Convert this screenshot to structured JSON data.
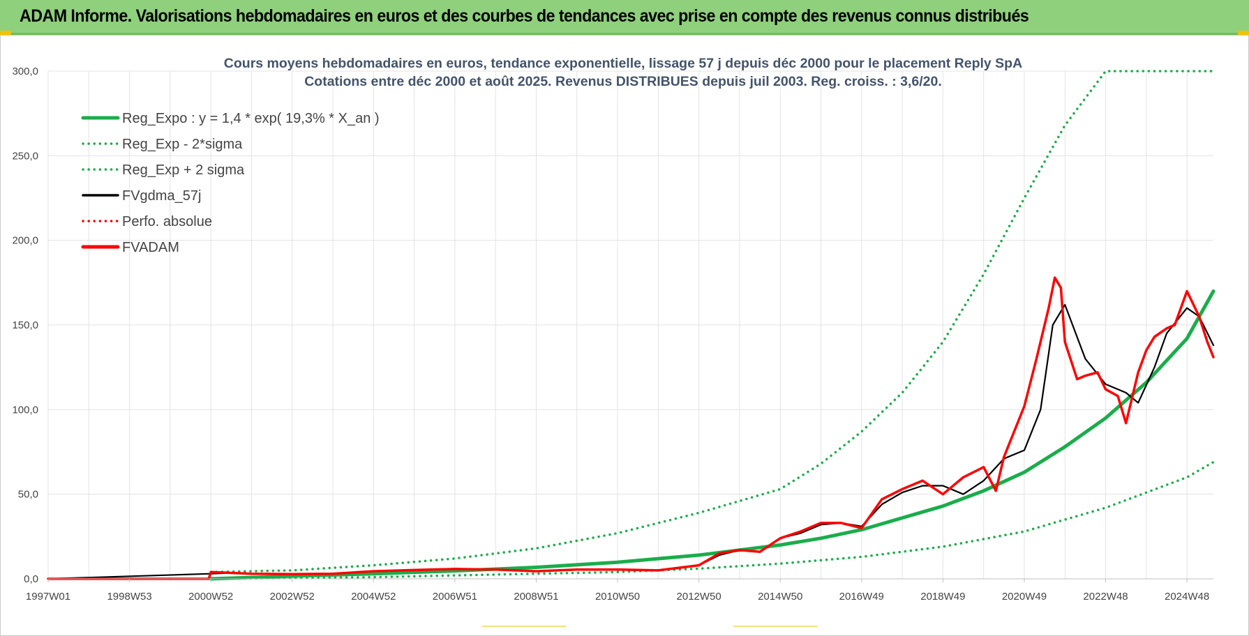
{
  "header": {
    "title": "ADAM Informe. Valorisations hebdomadaires en euros et des courbes de tendances avec prise en compte des revenus connus distribués"
  },
  "colors": {
    "header_bg": "#8fd07c",
    "reg_expo": "#1aad4b",
    "fvgdma": "#000000",
    "fvadam": "#ff0000",
    "title": "#44546a"
  },
  "chart_data": {
    "type": "line",
    "title": "Cours moyens hebdomadaires en euros, tendance exponentielle, lissage 57 j depuis déc 2000 pour le placement Reply SpA",
    "subtitle": "Cotations entre déc 2000 et août 2025. Revenus DISTRIBUES depuis juil 2003. Reg. croiss. : 3,6/20.",
    "xlabel": "",
    "ylabel": "",
    "ylim": [
      0,
      300
    ],
    "yticks": [
      "0,0",
      "50,0",
      "100,0",
      "150,0",
      "200,0",
      "250,0",
      "300,0"
    ],
    "xlim": [
      1997.0,
      2025.65
    ],
    "xticks": [
      {
        "label": "1997W01",
        "x": 1997.0
      },
      {
        "label": "1998W53",
        "x": 1999.0
      },
      {
        "label": "2000W52",
        "x": 2001.0
      },
      {
        "label": "2002W52",
        "x": 2003.0
      },
      {
        "label": "2004W52",
        "x": 2005.0
      },
      {
        "label": "2006W51",
        "x": 2007.0
      },
      {
        "label": "2008W51",
        "x": 2009.0
      },
      {
        "label": "2010W50",
        "x": 2011.0
      },
      {
        "label": "2012W50",
        "x": 2013.0
      },
      {
        "label": "2014W50",
        "x": 2015.0
      },
      {
        "label": "2016W49",
        "x": 2017.0
      },
      {
        "label": "2018W49",
        "x": 2019.0
      },
      {
        "label": "2020W49",
        "x": 2021.0
      },
      {
        "label": "2022W48",
        "x": 2023.0
      },
      {
        "label": "2024W48",
        "x": 2025.0
      }
    ],
    "grid": true,
    "legend_position": "top-left",
    "series": [
      {
        "name": "Reg_Expo : y = 1,4 * exp( 19,3% *  X_an )",
        "style": "solid",
        "color": "#1aad4b",
        "x": [
          2001,
          2003,
          2005,
          2007,
          2009,
          2011,
          2013,
          2015,
          2016,
          2017,
          2018,
          2019,
          2020,
          2021,
          2022,
          2023,
          2024,
          2025,
          2025.65
        ],
        "y": [
          0,
          1.6,
          3,
          4.7,
          6.8,
          9.8,
          14,
          20,
          24,
          29,
          36,
          43,
          52,
          63,
          78,
          95,
          116,
          142,
          170
        ]
      },
      {
        "name": "Reg_Exp - 2*sigma",
        "style": "dotted",
        "color": "#1aad4b",
        "x": [
          2001,
          2003,
          2005,
          2007,
          2009,
          2011,
          2013,
          2015,
          2017,
          2019,
          2021,
          2023,
          2025,
          2025.65
        ],
        "y": [
          0,
          0.5,
          1,
          2,
          3,
          4,
          6,
          9,
          13,
          19,
          28,
          42,
          60,
          69
        ]
      },
      {
        "name": "Reg_Exp + 2 sigma",
        "style": "dotted",
        "color": "#1aad4b",
        "x": [
          2001,
          2003,
          2005,
          2007,
          2009,
          2011,
          2013,
          2015,
          2016,
          2017,
          2018,
          2019,
          2020,
          2021,
          2022,
          2023,
          2024,
          2025,
          2025.65
        ],
        "y": [
          4,
          5,
          8,
          12,
          18,
          27,
          39,
          53,
          68,
          87,
          110,
          140,
          180,
          225,
          268,
          300,
          300,
          300,
          300
        ]
      },
      {
        "name": "FVgdma_57j",
        "style": "solid",
        "color": "#000000",
        "x": [
          1997,
          2001,
          2001.5,
          2002,
          2003,
          2004,
          2005,
          2006,
          2007,
          2008,
          2009,
          2010,
          2011,
          2012,
          2013,
          2013.5,
          2014,
          2014.5,
          2015,
          2015.5,
          2016,
          2016.5,
          2017,
          2017.5,
          2018,
          2018.5,
          2019,
          2019.5,
          2020,
          2020.5,
          2021,
          2021.4,
          2021.7,
          2022,
          2022.5,
          2023,
          2023.5,
          2023.8,
          2024.2,
          2024.5,
          2025,
          2025.3,
          2025.65
        ],
        "y": [
          0,
          3,
          3.5,
          3,
          2.6,
          3,
          4.5,
          5,
          6,
          5.5,
          4.5,
          5.5,
          5.5,
          5,
          8,
          14,
          17,
          16,
          24,
          27,
          32,
          33,
          31,
          44,
          51,
          55,
          55,
          50,
          58,
          71,
          76,
          100,
          150,
          162,
          130,
          115,
          110,
          104,
          125,
          145,
          160,
          155,
          138
        ]
      },
      {
        "name": "Perfo. absolue",
        "style": "dotted",
        "color": "#ff0000",
        "x": [],
        "y": []
      },
      {
        "name": "FVADAM",
        "style": "solid",
        "color": "#ff0000",
        "x": [
          1997,
          2000.95,
          2001,
          2001.5,
          2002,
          2003,
          2004,
          2005,
          2006,
          2007,
          2008,
          2009,
          2010,
          2011,
          2012,
          2013,
          2013.5,
          2014,
          2014.5,
          2015,
          2015.5,
          2016,
          2016.5,
          2017,
          2017.5,
          2018,
          2018.5,
          2019,
          2019.5,
          2020,
          2020.3,
          2020.5,
          2021,
          2021.3,
          2021.6,
          2021.75,
          2021.9,
          2022,
          2022.3,
          2022.5,
          2022.8,
          2023,
          2023.3,
          2023.5,
          2023.8,
          2024,
          2024.2,
          2024.5,
          2024.7,
          2025,
          2025.3,
          2025.5,
          2025.65
        ],
        "y": [
          0,
          0,
          4,
          3.5,
          3,
          2.8,
          3,
          4.5,
          5.2,
          5.8,
          5.5,
          4.5,
          5.5,
          5.5,
          5,
          8,
          15,
          17,
          16,
          24,
          28,
          33,
          33,
          30,
          47,
          53,
          58,
          50,
          60,
          66,
          52,
          72,
          102,
          130,
          160,
          178,
          172,
          140,
          118,
          120,
          122,
          112,
          108,
          92,
          122,
          135,
          143,
          148,
          150,
          170,
          155,
          140,
          131
        ]
      }
    ]
  }
}
